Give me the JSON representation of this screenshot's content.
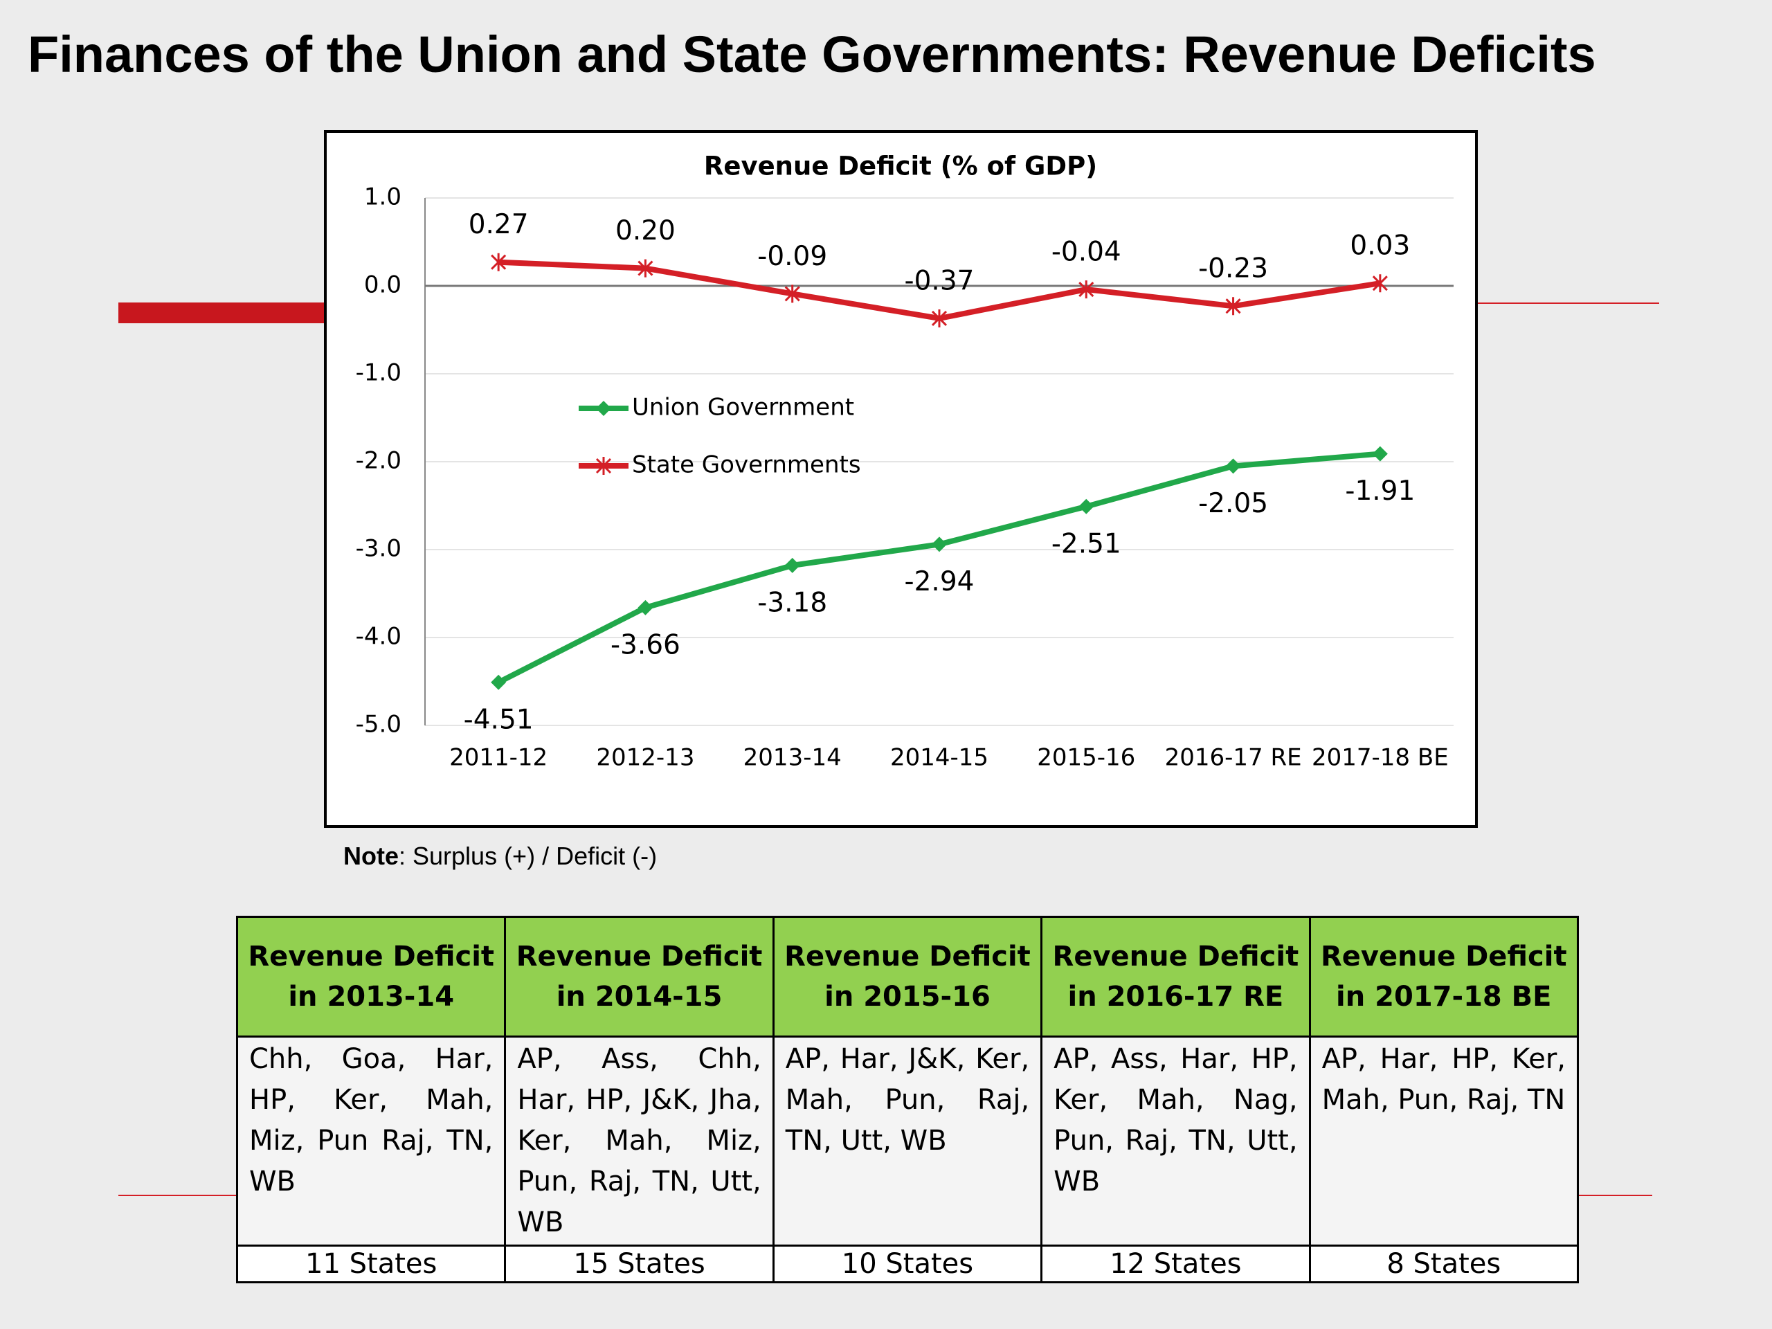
{
  "title": "Finances of the Union and State Governments: Revenue Deficits",
  "chart_data": {
    "type": "line",
    "title": "Revenue Deficit (% of GDP)",
    "categories": [
      "2011-12",
      "2012-13",
      "2013-14",
      "2014-15",
      "2015-16",
      "2016-17 RE",
      "2017-18 BE"
    ],
    "series": [
      {
        "name": "Union Government",
        "color": "#21a84a",
        "marker": "diamond",
        "values": [
          -4.51,
          -3.66,
          -3.18,
          -2.94,
          -2.51,
          -2.05,
          -1.91
        ]
      },
      {
        "name": "State Governments",
        "color": "#d41f26",
        "marker": "asterisk",
        "values": [
          0.27,
          0.2,
          -0.09,
          -0.37,
          -0.04,
          -0.23,
          0.03
        ],
        "value_labels": [
          "0.27",
          "0.20",
          "-0.09",
          "-0.37",
          "-0.04",
          "-0.23",
          "0.03"
        ]
      }
    ],
    "ylim": [
      -5,
      1
    ],
    "yticks": [
      {
        "value": 1,
        "label": "1.0"
      },
      {
        "value": 0,
        "label": "0.0"
      },
      {
        "value": -1,
        "label": "-1.0"
      },
      {
        "value": -2,
        "label": "-2.0"
      },
      {
        "value": -3,
        "label": "-3.0"
      },
      {
        "value": -4,
        "label": "-4.0"
      },
      {
        "value": -5,
        "label": "-5.0"
      }
    ],
    "grid": true
  },
  "note": {
    "label": "Note",
    "text": ": Surplus (+) / Deficit (-)"
  },
  "table": {
    "headers": [
      "Revenue Deficit in 2013-14",
      "Revenue Deficit in 2014-15",
      "Revenue Deficit in 2015-16",
      "Revenue Deficit in 2016-17 RE",
      "Revenue Deficit in 2017-18 BE"
    ],
    "rows": [
      [
        "Chh, Goa, Har, HP, Ker, Mah, Miz, Pun Raj, TN, WB",
        "AP, Ass, Chh, Har, HP, J&K, Jha, Ker, Mah, Miz, Pun, Raj, TN, Utt, WB",
        "AP, Har, J&K, Ker, Mah, Pun, Raj, TN, Utt, WB",
        "AP, Ass, Har, HP, Ker, Mah, Nag, Pun, Raj, TN, Utt, WB",
        "AP, Har, HP, Ker, Mah, Pun, Raj, TN"
      ],
      [
        "11 States",
        "15 States",
        "10 States",
        "12 States",
        "8 States"
      ]
    ]
  }
}
